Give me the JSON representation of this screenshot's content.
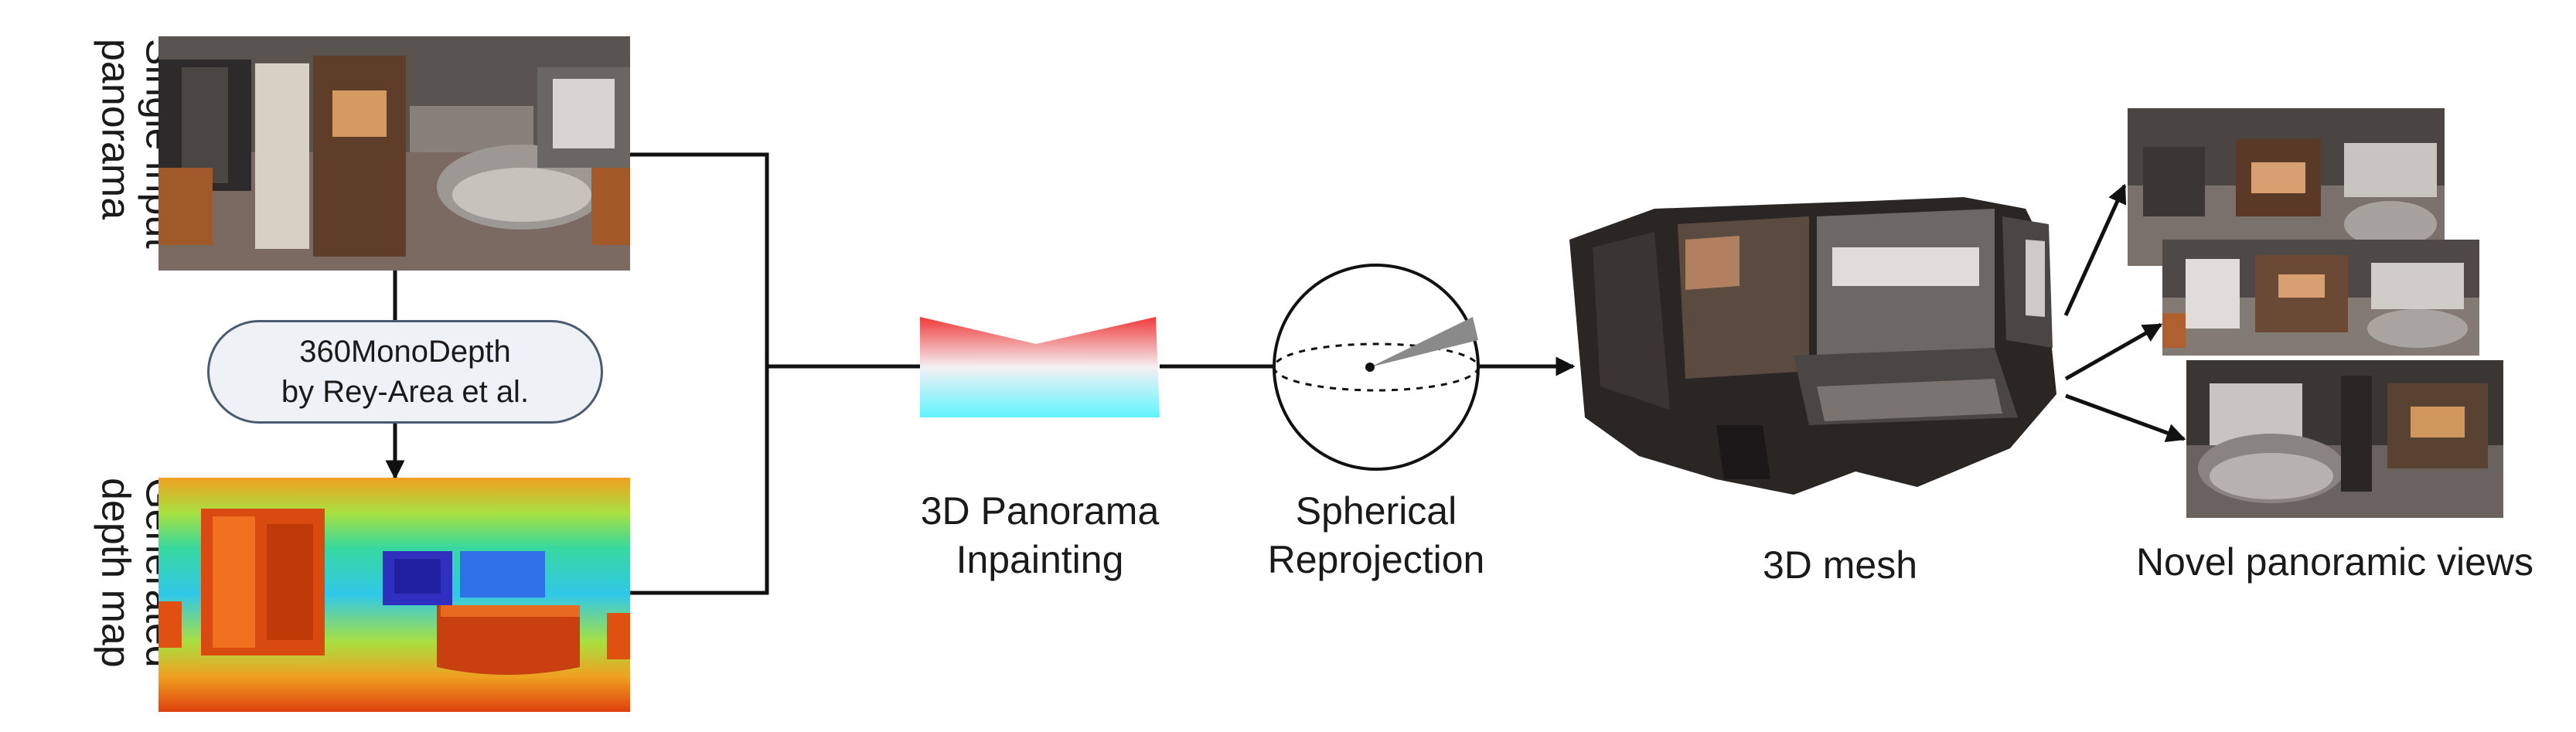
{
  "labels": {
    "input": [
      "Single input",
      "panorama"
    ],
    "depth_method": [
      "360MonoDepth",
      "by Rey-Area et al."
    ],
    "depth": [
      "Generated",
      "depth map"
    ],
    "inpainting": [
      "3D Panorama",
      "Inpainting"
    ],
    "reprojection": [
      "Spherical",
      "Reprojection"
    ],
    "mesh": "3D mesh",
    "novel": "Novel panoramic views"
  },
  "colors": {
    "line": "#111111",
    "inpaint_top": "#f03a3a",
    "inpaint_bottom": "#5ff4ff",
    "pill_fill": "#eef1f6",
    "pill_border": "#4a5a70"
  }
}
